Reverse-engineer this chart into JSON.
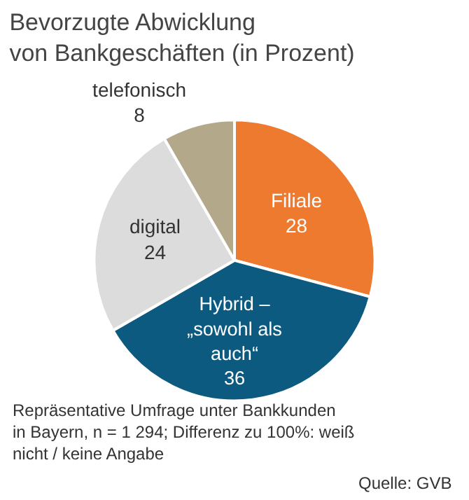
{
  "chart_data": {
    "type": "pie",
    "title": "Bevorzugte Abwicklung\nvon Bankgeschäften (in Prozent)",
    "categories": [
      "Filiale",
      "Hybrid –\n„sowohl als\nauch“",
      "digital",
      "telefonisch"
    ],
    "values": [
      28,
      36,
      24,
      8
    ],
    "colors": [
      "#ee7a30",
      "#0d5a80",
      "#dcdcdc",
      "#b3a98a"
    ],
    "data_labels": true,
    "legend": false,
    "annotations": [
      "Repräsentative Umfrage unter Bankkunden\nin Bayern, n = 1 294; Differenz zu 100%: weiß\nnicht / keine Angabe",
      "Quelle: GVB"
    ]
  }
}
